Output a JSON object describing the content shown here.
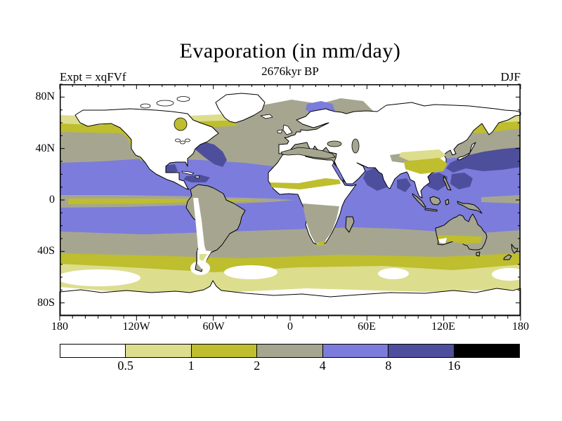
{
  "header": {
    "title": "Evaporation (in mm/day)",
    "subtitle": "2676kyr BP",
    "experiment_label": "Expt = xqFVf",
    "season": "DJF"
  },
  "map": {
    "lat_tick_labels": [
      "80N",
      "40N",
      "0",
      "40S",
      "80S"
    ],
    "lon_tick_labels": [
      "180",
      "120W",
      "60W",
      "0",
      "60E",
      "120E",
      "180"
    ]
  },
  "colorbar": {
    "boundary_labels": [
      "0.5",
      "1",
      "2",
      "4",
      "8",
      "16"
    ],
    "colors": [
      "#ffffff",
      "#dddd8e",
      "#bebe2e",
      "#a6a690",
      "#7c7cdc",
      "#4e4f9c",
      "#000000"
    ],
    "label_color": "#000000"
  },
  "chart_data": {
    "type": "heatmap",
    "subtype": "filled-contour world map",
    "title": "Evaporation (in mm/day)",
    "subtitle": "2676kyr BP",
    "experiment": "xqFVf",
    "season": "DJF",
    "units": "mm/day",
    "projection": "equirectangular, lon 180W to 180E, lat 90S to 90N",
    "x_axis": {
      "label_ticks": [
        "180",
        "120W",
        "60W",
        "0",
        "60E",
        "120E",
        "180"
      ],
      "minor_tick_deg": 10
    },
    "y_axis": {
      "label_ticks": [
        "80N",
        "40N",
        "0",
        "40S",
        "80S"
      ],
      "minor_tick_deg": 10
    },
    "contour_levels": [
      0.5,
      1,
      2,
      4,
      8,
      16
    ],
    "palette": [
      {
        "range": "< 0.5",
        "color": "#ffffff"
      },
      {
        "range": "0.5 - 1",
        "color": "#dddd8e"
      },
      {
        "range": "1 - 2",
        "color": "#bebe2e"
      },
      {
        "range": "2 - 4",
        "color": "#a6a690"
      },
      {
        "range": "4 - 8",
        "color": "#7c7cdc"
      },
      {
        "range": "8 - 16",
        "color": "#4e4f9c"
      },
      {
        "range": "> 16",
        "color": "#000000"
      }
    ],
    "features": [
      "Tropical and subtropical oceans in 4-8 mm/day band (periwinkle) from ~28N to ~23S",
      "8-16 mm/day (dark blue) maxima: Kuroshio region east of Japan, Gulf Stream off US east coast, Gulf of Mexico, Caribbean, Arabian Sea, Bay of Bengal, South China Sea / Philippine Sea",
      "Equatorial Pacific cold-tongue of reduced evaporation (2-4 gray with 1-2 olive core)",
      "Subtropical-to-midlatitude 2-4 mm/day gray bands near 30-45N and 25-40S",
      "1-2 mm/day olive band around 40-55S and along ~50N; 0.5-1 pale band toward 60S",
      "High latitudes and most continental interiors below 0.5 mm/day (white)",
      "North Atlantic gray (2-4) extends far north past Norway; small 4-8 patch in Barents Sea",
      "Land outlines drawn in black; continents mostly white with gray interiors over South America, southern Africa and Australia"
    ]
  }
}
